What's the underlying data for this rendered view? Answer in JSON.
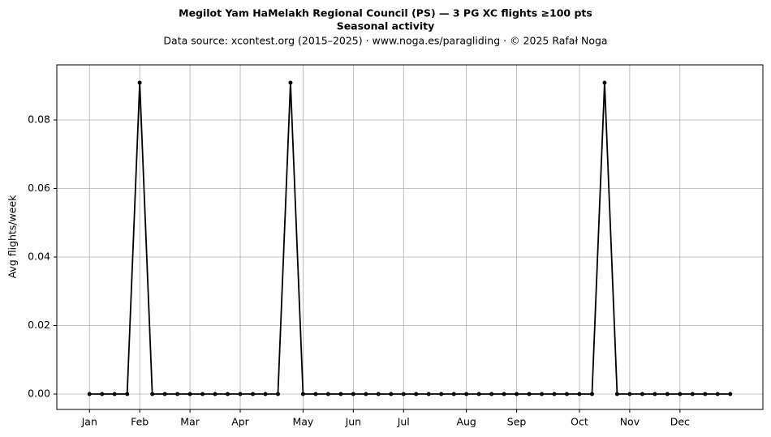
{
  "chart_data": {
    "type": "line",
    "title": "Megilot Yam HaMelakh Regional Council (PS)  —  3 PG XC flights ≥100 pts",
    "subtitle": "Seasonal activity",
    "source": "Data source: xcontest.org (2015–2025)  ·  www.noga.es/paragliding  ·  © 2025 Rafał Noga",
    "y_label": "Avg flights/week",
    "x": [
      1,
      2,
      3,
      4,
      5,
      6,
      7,
      8,
      9,
      10,
      11,
      12,
      13,
      14,
      15,
      16,
      17,
      18,
      19,
      20,
      21,
      22,
      23,
      24,
      25,
      26,
      27,
      28,
      29,
      30,
      31,
      32,
      33,
      34,
      35,
      36,
      37,
      38,
      39,
      40,
      41,
      42,
      43,
      44,
      45,
      46,
      47,
      48,
      49,
      50,
      51,
      52
    ],
    "series": [
      {
        "color": "#000000",
        "values": [
          0,
          0,
          0,
          0,
          0.0909,
          0,
          0,
          0,
          0,
          0,
          0,
          0,
          0,
          0,
          0,
          0,
          0.0909,
          0,
          0,
          0,
          0,
          0,
          0,
          0,
          0,
          0,
          0,
          0,
          0,
          0,
          0,
          0,
          0,
          0,
          0,
          0,
          0,
          0,
          0,
          0,
          0,
          0.0909,
          0,
          0,
          0,
          0,
          0,
          0,
          0,
          0,
          0,
          0
        ]
      }
    ],
    "xlim": [
      -1.6,
      54.6
    ],
    "xticks": [
      {
        "value": 1,
        "label": "Jan"
      },
      {
        "value": 5,
        "label": "Feb"
      },
      {
        "value": 9,
        "label": "Mar"
      },
      {
        "value": 13,
        "label": "Apr"
      },
      {
        "value": 18,
        "label": "May"
      },
      {
        "value": 22,
        "label": "Jun"
      },
      {
        "value": 26,
        "label": "Jul"
      },
      {
        "value": 31,
        "label": "Aug"
      },
      {
        "value": 35,
        "label": "Sep"
      },
      {
        "value": 40,
        "label": "Oct"
      },
      {
        "value": 44,
        "label": "Nov"
      },
      {
        "value": 48,
        "label": "Dec"
      }
    ],
    "ylim": [
      -0.0045,
      0.0961
    ],
    "yticks": [
      {
        "value": 0,
        "label": "0.00"
      },
      {
        "value": 0.02,
        "label": "0.02"
      },
      {
        "value": 0.04,
        "label": "0.04"
      },
      {
        "value": 0.06,
        "label": "0.06"
      },
      {
        "value": 0.08,
        "label": "0.08"
      }
    ],
    "grid": true
  }
}
